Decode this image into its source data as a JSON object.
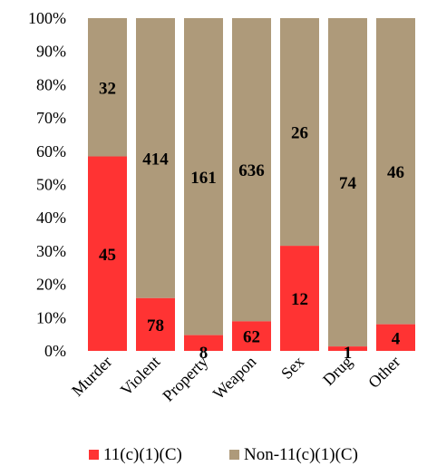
{
  "chart_data": {
    "type": "bar",
    "stacked": "percent",
    "categories": [
      "Murder",
      "Violent",
      "Property",
      "Weapon",
      "Sex",
      "Drug",
      "Other"
    ],
    "series": [
      {
        "name": "11(c)(1)(C)",
        "color": "#ff3333",
        "values": [
          45,
          78,
          8,
          62,
          12,
          1,
          4
        ]
      },
      {
        "name": "Non-11(c)(1)(C)",
        "color": "#ae9a7a",
        "values": [
          32,
          414,
          161,
          636,
          26,
          74,
          46
        ]
      }
    ],
    "yticks": [
      "0%",
      "10%",
      "20%",
      "30%",
      "40%",
      "50%",
      "60%",
      "70%",
      "80%",
      "90%",
      "100%"
    ],
    "ylim": [
      0,
      100
    ],
    "grid": false,
    "legend_position": "bottom"
  }
}
